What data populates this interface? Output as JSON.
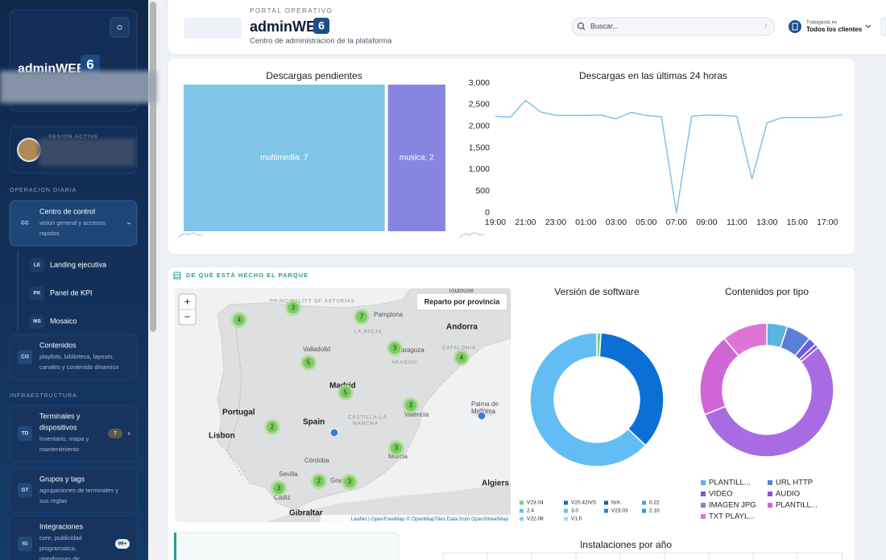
{
  "sidebar": {
    "brand": "adminWEB",
    "brand_version": "6",
    "session_label": "SESION ACTIVA",
    "sections": [
      "OPERACION DIARIA",
      "INFRAESTRUCTURA"
    ],
    "nav": [
      {
        "code": "CC",
        "title": [
          "Centro de control"
        ],
        "desc": [
          "vision general y accesos",
          "rapidos"
        ]
      },
      {
        "code": "CO",
        "title": [
          "Contenidos"
        ],
        "desc": [
          "playlists, biblioteca, layouts,",
          "canales y contenido dinamico"
        ]
      },
      {
        "code": "TD",
        "title": [
          "Terminales y",
          "dispositivos"
        ],
        "desc": [
          "inventario, mapa y",
          "mantenimiento"
        ],
        "badge": 7
      },
      {
        "code": "GT",
        "title": [
          "Grupos y tags"
        ],
        "desc": [
          "agrupaciones de terminales y",
          "sus reglas"
        ]
      },
      {
        "code": "IG",
        "title": [
          "Integraciones"
        ],
        "desc": [
          "core, publicidad",
          "programatica,",
          "plataformas de"
        ],
        "badge": "99+"
      }
    ],
    "subnav": [
      {
        "code": "LE",
        "title": "Landing ejecutiva"
      },
      {
        "code": "PK",
        "title": "Panel de KPI"
      },
      {
        "code": "MS",
        "title": "Mosaico"
      }
    ]
  },
  "header": {
    "eyebrow": "PORTAL OPERATIVO",
    "brand": "adminWEB",
    "version": "6",
    "subtitle": "Centro de administracion de la plataforma",
    "search_placeholder": "Buscar...",
    "search_shortcut": "/",
    "workspace_label": "Trabajando en",
    "workspace": "Todos los clientes"
  },
  "section_title": "DE QUÉ ESTÁ HECHO EL PARQUE",
  "map": {
    "button": "Reparto por provincia",
    "zoom_in": "+",
    "zoom_out": "−",
    "attribution": "Leaflet | OpenFreeMap © OpenMapTiles Data from OpenStreetMap",
    "places": [
      "Toulouse",
      "PRINCIPALITY OF ASTURIAS",
      "Pamplona",
      "Andorra",
      "LA RIOJA",
      "Zaragoza",
      "CATALONIA",
      "Valladolid",
      "ARAGON",
      "Madrid",
      "Portugal",
      "Spain",
      "Valencia",
      "Palma de",
      "Mallorca",
      "CASTILLA-LA",
      "MANCHA",
      "Lisbon",
      "Murcia",
      "Córdoba",
      "Sevilla",
      "Granada",
      "Cádiz",
      "Gibraltar",
      "Algiers"
    ],
    "clusters": [
      4,
      3,
      7,
      3,
      4,
      5,
      5,
      3,
      2,
      3,
      2,
      3,
      3
    ]
  },
  "chart_data": [
    {
      "type": "treemap",
      "title": "Descargas pendientes",
      "categories": [
        "multimedia",
        "musica"
      ],
      "values": [
        7,
        2
      ],
      "value_labels": [
        "multimedia: 7",
        "musica: 2"
      ],
      "colors": [
        "#80c5e7",
        "#8686e0"
      ]
    },
    {
      "type": "line",
      "title": "Descargas en las últimas 24 horas",
      "categories": [
        "19:00",
        null,
        "21:00",
        null,
        "23:00",
        null,
        "01:00",
        null,
        "03:00",
        null,
        "05:00",
        null,
        "07:00",
        null,
        "09:00",
        null,
        "11:00",
        null,
        "13:00",
        null,
        "15:00",
        null,
        "17:00",
        null
      ],
      "values": [
        2230,
        2210,
        2600,
        2330,
        2250,
        2250,
        2250,
        2260,
        2170,
        2320,
        2250,
        2220,
        0,
        2230,
        2260,
        2250,
        2230,
        780,
        2080,
        2200,
        2200,
        2200,
        2210,
        2270
      ],
      "color": "#7fc4e6",
      "ylim": [
        0,
        3000
      ],
      "yticks": [
        0,
        500,
        {
          "value": 1000,
          "label": "1,000"
        },
        {
          "value": 1500,
          "label": "1,500"
        },
        {
          "value": 2000,
          "label": "2,000"
        },
        {
          "value": 2500,
          "label": "2,500"
        },
        {
          "value": 3000,
          "label": "3,000"
        }
      ],
      "grid": false
    },
    {
      "type": "donut",
      "title": "Versión de software",
      "categories": [
        "V23.04",
        "V20.42/VS",
        "N/A",
        "0.22",
        "2.4",
        "3.0",
        "V23.03",
        "2.10",
        "V22.08",
        "V1.0"
      ],
      "values": [
        1,
        36,
        0,
        0,
        63,
        0,
        0,
        0,
        0,
        0
      ],
      "colors": [
        "#7bcf7a",
        "#0b70d6",
        "#1466b8",
        "#3aa8e8",
        "#62bdf5",
        "#6cc3f0",
        "#1d86d6",
        "#2c9ce0",
        "#8ad0f5",
        "#a8dcf8"
      ],
      "legend_columns": 4
    },
    {
      "type": "donut",
      "title": "Contenidos por tipo",
      "categories": [
        "PLANTILL...",
        "URL HTTP",
        "VIDEO",
        "AUDIO",
        "IMAGEN JPG",
        "PLANTILL...",
        "TXT PLAYL..."
      ],
      "values": [
        5,
        6,
        2,
        1,
        55,
        20,
        11
      ],
      "colors": [
        "#5ab4e0",
        "#5a7fd6",
        "#6a5ee0",
        "#8a55d6",
        "#a96be2",
        "#cf65d6",
        "#e074d6"
      ],
      "legend_columns": 2
    },
    {
      "type": "bar",
      "title": "Instalaciones por año"
    }
  ]
}
